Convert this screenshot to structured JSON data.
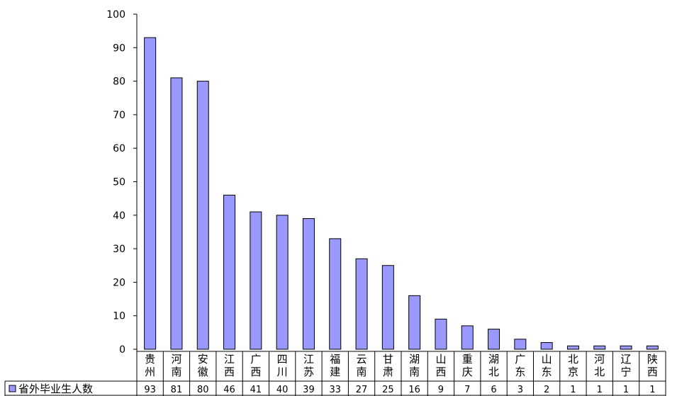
{
  "chart_data": {
    "type": "bar",
    "ylim": [
      0,
      100
    ],
    "yticks": [
      0,
      10,
      20,
      30,
      40,
      50,
      60,
      70,
      80,
      90,
      100
    ],
    "grid": false,
    "legend_position": "left of data table",
    "bar_color": "#9999ff",
    "categories": [
      [
        "贵",
        "州"
      ],
      [
        "河",
        "南"
      ],
      [
        "安",
        "徽"
      ],
      [
        "江",
        "西"
      ],
      [
        "广",
        "西"
      ],
      [
        "四",
        "川"
      ],
      [
        "江",
        "苏"
      ],
      [
        "福",
        "建"
      ],
      [
        "云",
        "南"
      ],
      [
        "甘",
        "肃"
      ],
      [
        "湖",
        "南"
      ],
      [
        "山",
        "西"
      ],
      [
        "重",
        "庆"
      ],
      [
        "湖",
        "北"
      ],
      [
        "广",
        "东"
      ],
      [
        "山",
        "东"
      ],
      [
        "北",
        "京"
      ],
      [
        "河",
        "北"
      ],
      [
        "辽",
        "宁"
      ],
      [
        "陕",
        "西"
      ]
    ],
    "series": [
      {
        "name": "省外毕业生人数",
        "values": [
          93,
          81,
          80,
          46,
          41,
          40,
          39,
          33,
          27,
          25,
          16,
          9,
          7,
          6,
          3,
          2,
          1,
          1,
          1,
          1
        ]
      }
    ]
  }
}
